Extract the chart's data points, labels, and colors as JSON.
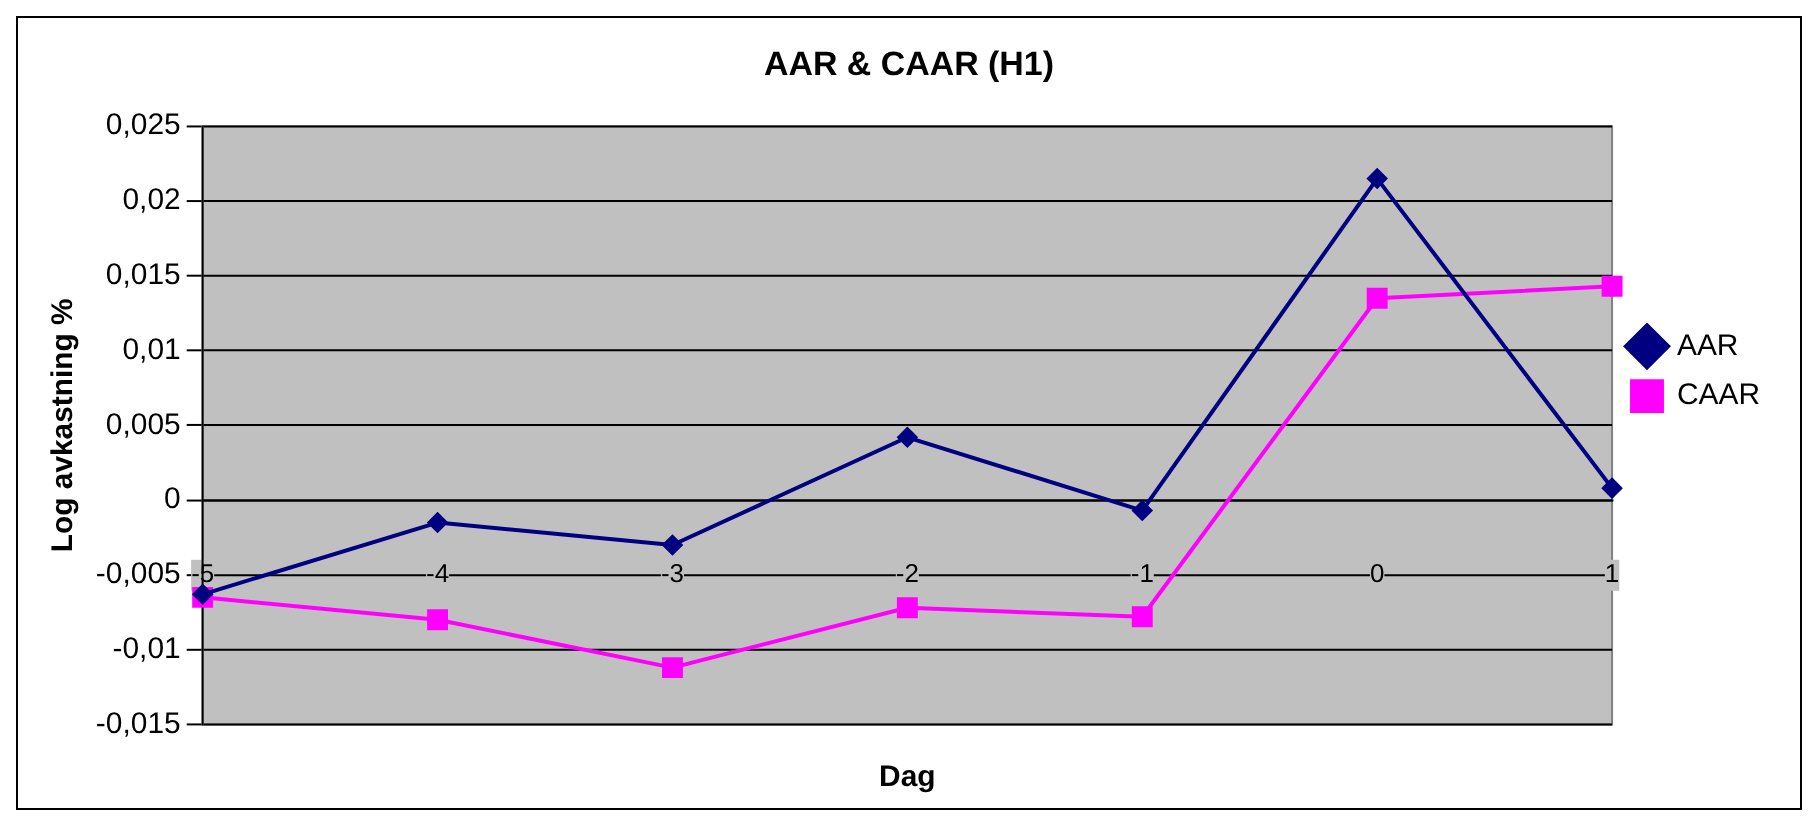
{
  "chart_data": {
    "type": "line",
    "title": "AAR & CAAR (H1)",
    "xlabel": "Dag",
    "ylabel": "Log avkastning %",
    "categories": [
      "-5",
      "-4",
      "-3",
      "-2",
      "-1",
      "0",
      "1"
    ],
    "series": [
      {
        "name": "AAR",
        "color": "#000080",
        "marker": "diamond",
        "values": [
          -0.0063,
          -0.0015,
          -0.003,
          0.0042,
          -0.0007,
          0.0215,
          0.0008
        ]
      },
      {
        "name": "CAAR",
        "color": "#ff00ff",
        "marker": "square",
        "values": [
          -0.0065,
          -0.008,
          -0.0112,
          -0.0072,
          -0.0078,
          0.0135,
          0.0143
        ]
      }
    ],
    "ylim": [
      -0.015,
      0.025
    ],
    "yticks": [
      {
        "value": -0.015,
        "label": "-0,015"
      },
      {
        "value": -0.01,
        "label": "-0,01"
      },
      {
        "value": -0.005,
        "label": "-0,005"
      },
      0,
      {
        "value": 0.005,
        "label": "0,005"
      },
      {
        "value": 0.01,
        "label": "0,01"
      },
      {
        "value": 0.015,
        "label": "0,015"
      },
      {
        "value": 0.02,
        "label": "0,02"
      },
      {
        "value": 0.025,
        "label": "0,025"
      }
    ],
    "grid": "y",
    "legend": "right",
    "line_style": "solid"
  }
}
